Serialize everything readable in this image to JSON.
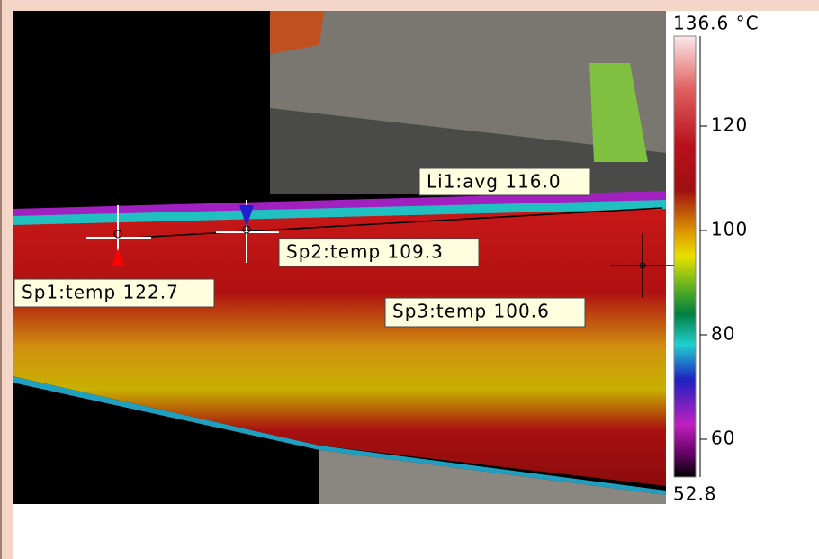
{
  "measurements": {
    "li1": "Li1:avg 116.0",
    "sp1": "Sp1:temp 122.7",
    "sp2": "Sp2:temp 109.3",
    "sp3": "Sp3:temp 100.6"
  },
  "scale": {
    "max_label": "136.6 °C",
    "min_label": "52.8",
    "ticks": [
      120,
      100,
      80,
      60
    ]
  }
}
